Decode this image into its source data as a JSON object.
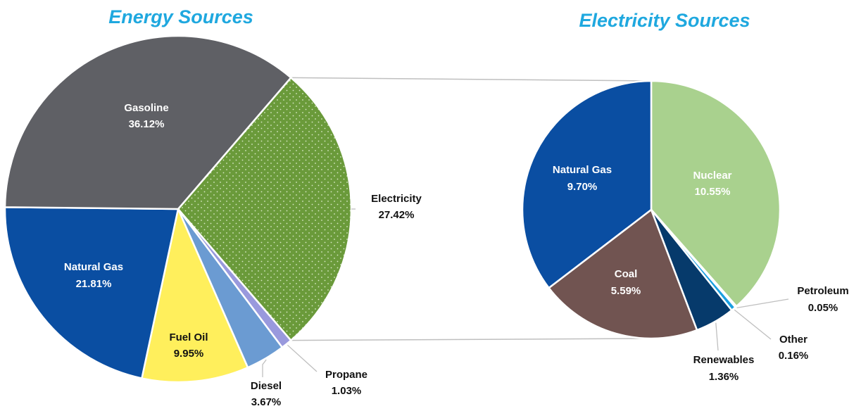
{
  "chart_data": [
    {
      "type": "pie",
      "title": "Energy Sources",
      "slices": [
        {
          "label": "Electricity",
          "value": 27.42,
          "display": "27.42%",
          "color": "#6a9a3a",
          "pattern": "dots"
        },
        {
          "label": "Propane",
          "value": 1.03,
          "display": "1.03%",
          "color": "#9999dd"
        },
        {
          "label": "Diesel",
          "value": 3.67,
          "display": "3.67%",
          "color": "#6b9bd2"
        },
        {
          "label": "Fuel Oil",
          "value": 9.95,
          "display": "9.95%",
          "color": "#ffef5c"
        },
        {
          "label": "Natural Gas",
          "value": 21.81,
          "display": "21.81%",
          "color": "#0a4ea2"
        },
        {
          "label": "Gasoline",
          "value": 36.12,
          "display": "36.12%",
          "color": "#5f6065"
        }
      ]
    },
    {
      "type": "pie",
      "title": "Electricity Sources",
      "slices": [
        {
          "label": "Nuclear",
          "value": 10.55,
          "display": "10.55%",
          "color": "#a9d18e"
        },
        {
          "label": "Petroleum",
          "value": 0.05,
          "display": "0.05%",
          "color": "#c8c8c8"
        },
        {
          "label": "Other",
          "value": 0.16,
          "display": "0.16%",
          "color": "#1a9fe0"
        },
        {
          "label": "Renewables",
          "value": 1.36,
          "display": "1.36%",
          "color": "#063a6b"
        },
        {
          "label": "Coal",
          "value": 5.59,
          "display": "5.59%",
          "color": "#715451"
        },
        {
          "label": "Natural Gas",
          "value": 9.7,
          "display": "9.70%",
          "color": "#0a4ea2"
        }
      ]
    }
  ],
  "colors": {
    "title": "#1fa8df",
    "connector": "#bfbfbf",
    "label_dark": "#111111",
    "label_light": "#ffffff",
    "slice_border": "#ffffff"
  }
}
